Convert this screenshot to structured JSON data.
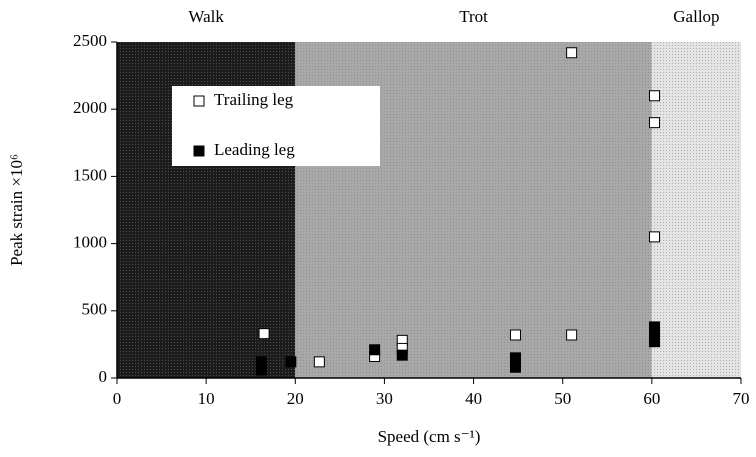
{
  "chart_data": {
    "type": "scatter",
    "xlabel": "Speed (cm s⁻¹)",
    "ylabel": "Peak strain ×10⁶",
    "xlim": [
      0,
      70
    ],
    "xticks": [
      0,
      10,
      20,
      30,
      40,
      50,
      60,
      70
    ],
    "ylim": [
      0,
      2500
    ],
    "yticks": [
      0,
      500,
      1000,
      1500,
      2000,
      2500
    ],
    "grid": false,
    "legend": "upper left",
    "regions": [
      {
        "label": "Walk",
        "range": [
          0,
          20
        ],
        "color": "#1c1c1c"
      },
      {
        "label": "Trot",
        "range": [
          20,
          60
        ],
        "color": "#a8a8a8"
      },
      {
        "label": "Gallop",
        "range": [
          60,
          70
        ],
        "color": "#e4e4e4"
      }
    ],
    "series": [
      {
        "name": "Trailing leg",
        "color": "#ffffff",
        "x": [
          16.5,
          22.7,
          28.9,
          32,
          32,
          44.7,
          51,
          51,
          60.3,
          60.3,
          60.3
        ],
        "values": [
          330,
          120,
          160,
          280,
          220,
          320,
          320,
          2420,
          2100,
          1900,
          1050
        ]
      },
      {
        "name": "Leading leg",
        "color": "#000000",
        "x": [
          16.2,
          16.2,
          19.5,
          28.9,
          32,
          44.7,
          44.7,
          60.3,
          60.3,
          60.3
        ],
        "values": [
          120,
          60,
          120,
          210,
          170,
          150,
          80,
          380,
          330,
          270
        ]
      }
    ]
  }
}
